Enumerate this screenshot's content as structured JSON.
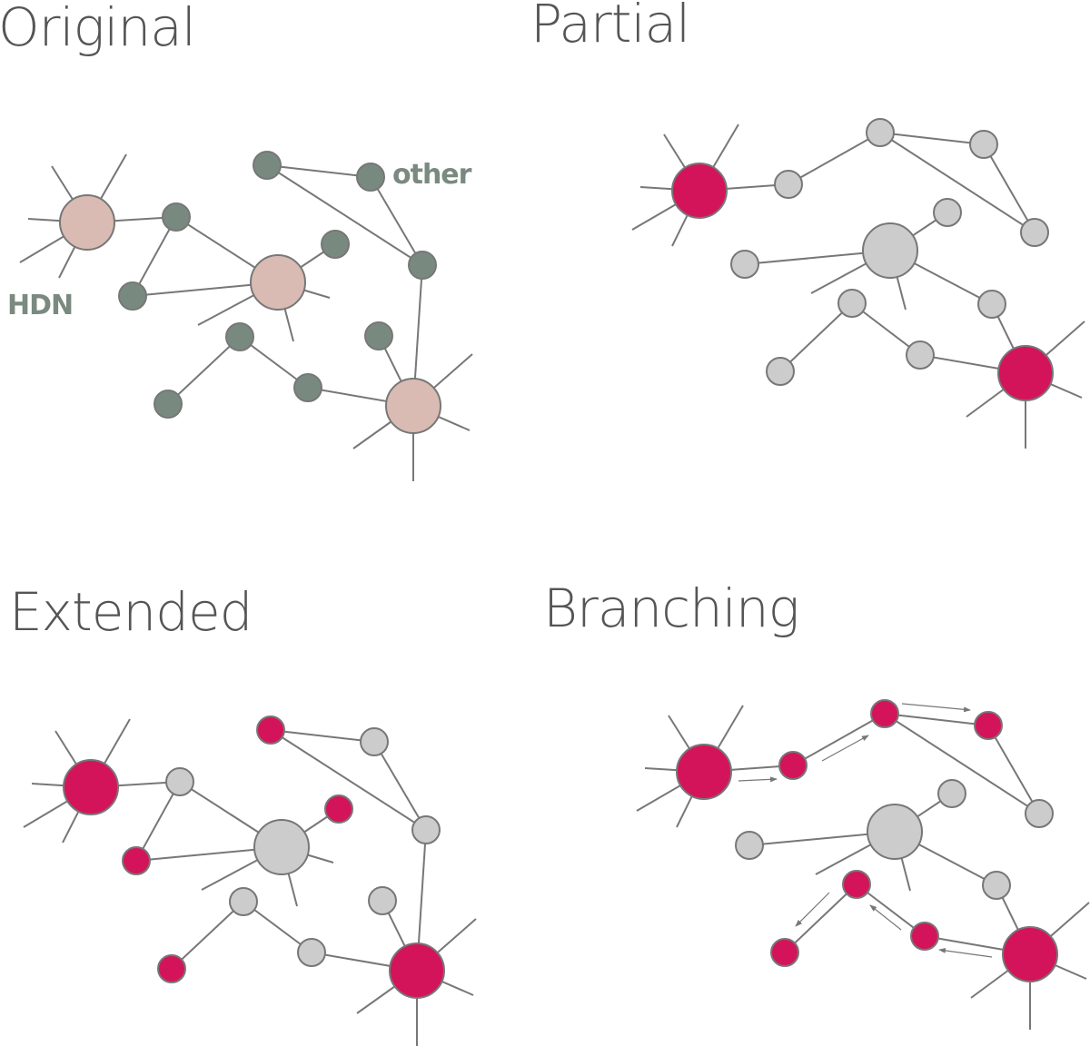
{
  "colors": {
    "hdn_original": "#d9bbb4",
    "other_original": "#788a80",
    "active": "#d4145a",
    "inactive": "#cccccc",
    "stroke": "#777777",
    "title": "#555555",
    "legend": "#7a8a80"
  },
  "legend": {
    "hdn": "HDN",
    "other": "other"
  },
  "panels": [
    {
      "title": "Original"
    },
    {
      "title": "Partial"
    },
    {
      "title": "Extended"
    },
    {
      "title": "Branching"
    }
  ]
}
